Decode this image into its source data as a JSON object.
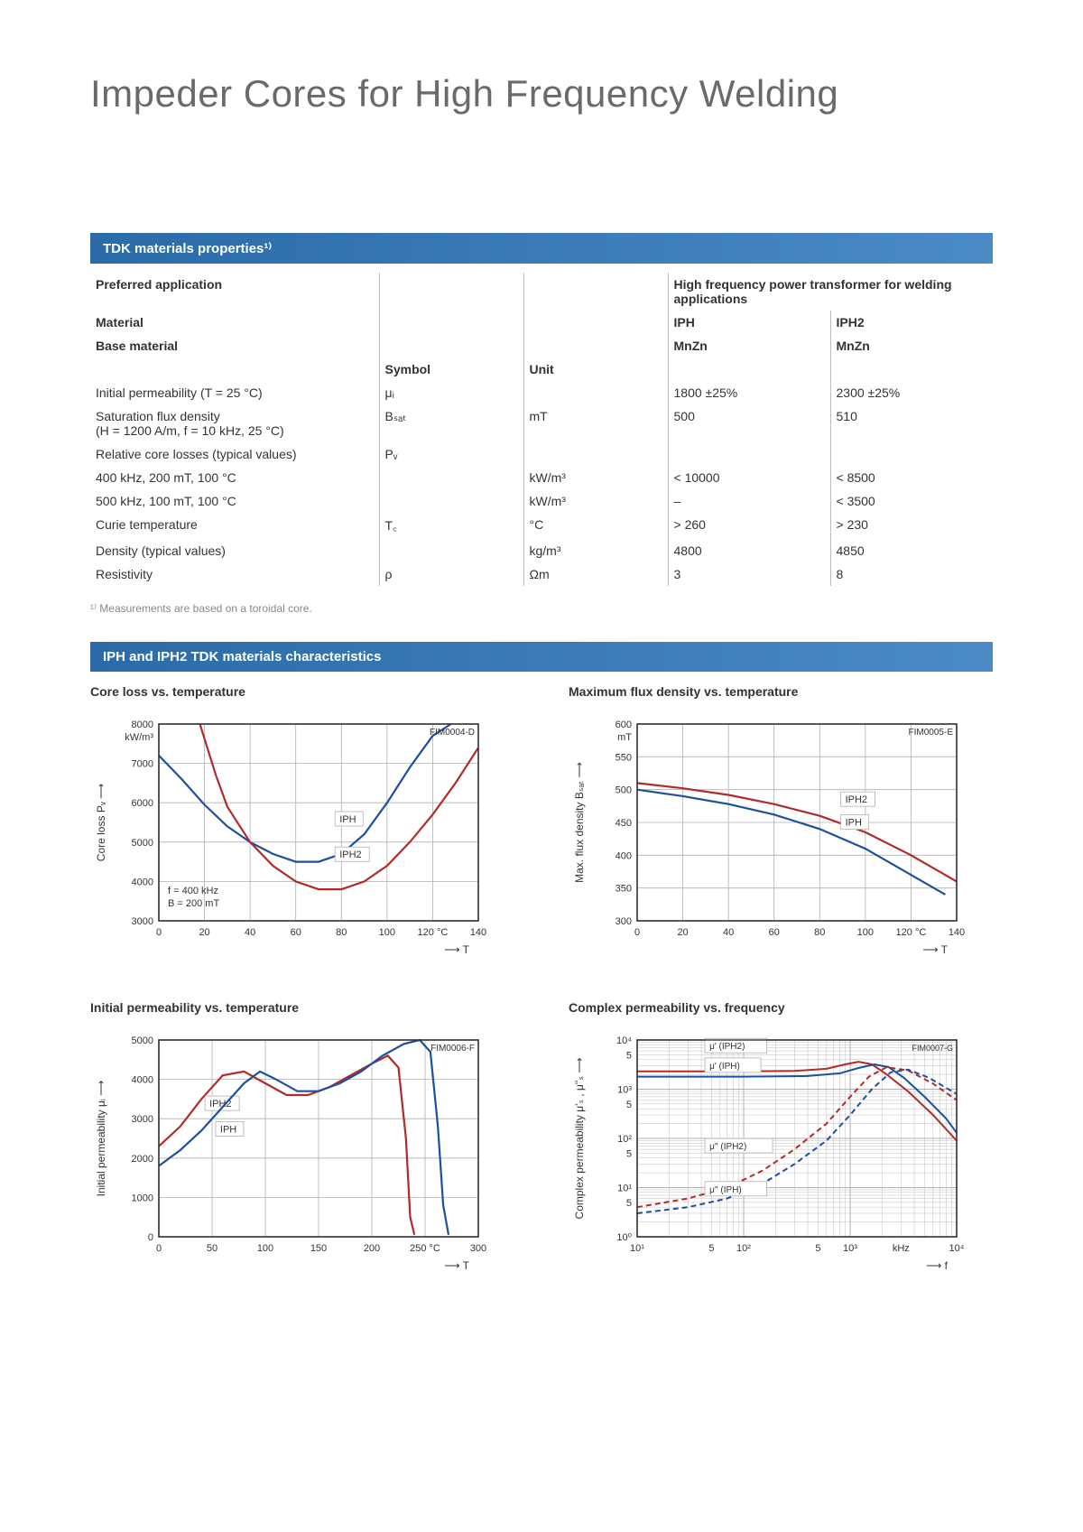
{
  "title": "Impeder Cores for High Frequency Welding",
  "section1_header": "TDK materials properties¹⁾",
  "section2_header": "IPH and IPH2 TDK materials characteristics",
  "footnote": "¹⁾ Measurements are based on a toroidal core.",
  "table": {
    "col_widths_pct": [
      32,
      16,
      16,
      18,
      18
    ],
    "rows": [
      {
        "c1": "Preferred application",
        "c1_bold": true,
        "c2": "",
        "c3": "",
        "c4": "High frequency power transformer for welding applications",
        "c4_span": 2,
        "c4_bold": true
      },
      {
        "c1": "Material",
        "c1_bold": true,
        "c2": "",
        "c3": "",
        "c4": "IPH",
        "c4_bold": true,
        "c5": "IPH2",
        "c5_bold": true
      },
      {
        "c1": "Base material",
        "c1_bold": true,
        "c2": "",
        "c3": "",
        "c4": "MnZn",
        "c4_bold": true,
        "c5": "MnZn",
        "c5_bold": true
      },
      {
        "c1": "",
        "c2": "Symbol",
        "c2_bold": true,
        "c3": "Unit",
        "c3_bold": true,
        "c4": "",
        "c5": ""
      },
      {
        "c1": "Initial permeability (T = 25 °C)",
        "c2": "μᵢ",
        "c3": "",
        "c4": "1800 ±25%",
        "c5": "2300 ±25%"
      },
      {
        "c1": "Saturation flux density\n(H = 1200 A/m, f = 10 kHz, 25 °C)",
        "c2": "Bₛₐₜ",
        "c3": "mT",
        "c4": "500",
        "c5": "510"
      },
      {
        "c1": "Relative core losses (typical values)",
        "c2": "Pᵥ",
        "c3": "",
        "c4": "",
        "c5": ""
      },
      {
        "c1": "400 kHz, 200 mT, 100 °C",
        "c2": "",
        "c3": "kW/m³",
        "c4": "< 10000",
        "c5": "< 8500"
      },
      {
        "c1": "500 kHz, 100 mT, 100 °C",
        "c2": "",
        "c3": "kW/m³",
        "c4": "–",
        "c5": "< 3500"
      },
      {
        "c1": "Curie temperature",
        "c2": "T꜀",
        "c3": "°C",
        "c4": "> 260",
        "c5": "> 230"
      },
      {
        "c1": "Density (typical values)",
        "c2": "",
        "c3": "kg/m³",
        "c4": "4800",
        "c5": "4850"
      },
      {
        "c1": "Resistivity",
        "c2": "ρ",
        "c3": "Ωm",
        "c4": "3",
        "c5": "8"
      }
    ]
  },
  "chart1": {
    "title": "Core loss vs. temperature",
    "code": "FIM0004-D",
    "ylabel": "Core loss Pᵥ ⟶",
    "yunit": "kW/m³",
    "xunit_suffix": "°C",
    "xlabel_arrow": "⟶ T",
    "xlim": [
      0,
      140
    ],
    "ylim": [
      3000,
      8000
    ],
    "xticks": [
      0,
      20,
      40,
      60,
      80,
      100,
      120,
      140
    ],
    "yticks": [
      3000,
      4000,
      5000,
      6000,
      7000,
      8000
    ],
    "grid_color": "#b0b0b0",
    "axis_color": "#333333",
    "bg": "#ffffff",
    "line_width": 2.2,
    "note_lines": [
      "f = 400 kHz",
      "B = 200 mT"
    ],
    "series": [
      {
        "name": "IPH",
        "color": "#1d4fa0",
        "label_pos": [
          78,
          5500
        ],
        "points": [
          [
            0,
            7200
          ],
          [
            10,
            6600
          ],
          [
            20,
            5950
          ],
          [
            30,
            5400
          ],
          [
            40,
            5000
          ],
          [
            50,
            4700
          ],
          [
            60,
            4500
          ],
          [
            70,
            4500
          ],
          [
            80,
            4700
          ],
          [
            90,
            5200
          ],
          [
            100,
            6000
          ],
          [
            110,
            6900
          ],
          [
            120,
            7700
          ],
          [
            128,
            8000
          ]
        ]
      },
      {
        "name": "IPH2",
        "color": "#b22a2a",
        "label_pos": [
          78,
          4600
        ],
        "points": [
          [
            18,
            8000
          ],
          [
            25,
            6700
          ],
          [
            30,
            5900
          ],
          [
            40,
            5000
          ],
          [
            50,
            4400
          ],
          [
            60,
            4000
          ],
          [
            70,
            3800
          ],
          [
            80,
            3800
          ],
          [
            90,
            4000
          ],
          [
            100,
            4400
          ],
          [
            110,
            5000
          ],
          [
            120,
            5700
          ],
          [
            130,
            6500
          ],
          [
            140,
            7400
          ]
        ]
      }
    ]
  },
  "chart2": {
    "title": "Maximum flux density vs. temperature",
    "code": "FIM0005-E",
    "ylabel": "Max. flux density Bₛₐₜ ⟶",
    "yunit": "mT",
    "xunit_suffix": "°C",
    "xlabel_arrow": "⟶ T",
    "xlim": [
      0,
      140
    ],
    "ylim": [
      300,
      600
    ],
    "xticks": [
      0,
      20,
      40,
      60,
      80,
      100,
      120,
      140
    ],
    "yticks": [
      300,
      350,
      400,
      450,
      500,
      550,
      600
    ],
    "grid_color": "#b0b0b0",
    "axis_color": "#333333",
    "bg": "#ffffff",
    "line_width": 2.2,
    "series": [
      {
        "name": "IPH2",
        "color": "#b22a2a",
        "label_pos": [
          90,
          480
        ],
        "points": [
          [
            0,
            510
          ],
          [
            20,
            502
          ],
          [
            40,
            492
          ],
          [
            60,
            478
          ],
          [
            80,
            460
          ],
          [
            100,
            435
          ],
          [
            120,
            400
          ],
          [
            140,
            360
          ]
        ]
      },
      {
        "name": "IPH",
        "color": "#1d4fa0",
        "label_pos": [
          90,
          445
        ],
        "points": [
          [
            0,
            500
          ],
          [
            20,
            490
          ],
          [
            40,
            478
          ],
          [
            60,
            462
          ],
          [
            80,
            440
          ],
          [
            100,
            410
          ],
          [
            120,
            370
          ],
          [
            135,
            340
          ]
        ]
      }
    ]
  },
  "chart3": {
    "title": "Initial permeability vs. temperature",
    "code": "FIM0006-F",
    "ylabel": "Initial permeability μᵢ ⟶",
    "yunit": "",
    "xunit_suffix": "°C",
    "xlabel_arrow": "⟶ T",
    "xlim": [
      0,
      300
    ],
    "ylim": [
      0,
      5000
    ],
    "xticks": [
      0,
      50,
      100,
      150,
      200,
      250,
      300
    ],
    "yticks": [
      0,
      1000,
      2000,
      3000,
      4000,
      5000
    ],
    "grid_color": "#b0b0b0",
    "axis_color": "#333333",
    "bg": "#ffffff",
    "line_width": 2.2,
    "series": [
      {
        "name": "IPH2",
        "color": "#b22a2a",
        "label_pos": [
          45,
          3300
        ],
        "points": [
          [
            0,
            2300
          ],
          [
            20,
            2800
          ],
          [
            40,
            3500
          ],
          [
            60,
            4100
          ],
          [
            80,
            4200
          ],
          [
            100,
            3900
          ],
          [
            120,
            3600
          ],
          [
            140,
            3600
          ],
          [
            160,
            3800
          ],
          [
            180,
            4100
          ],
          [
            200,
            4400
          ],
          [
            215,
            4600
          ],
          [
            225,
            4300
          ],
          [
            232,
            2500
          ],
          [
            236,
            500
          ],
          [
            240,
            50
          ]
        ]
      },
      {
        "name": "IPH",
        "color": "#1d4fa0",
        "label_pos": [
          55,
          2650
        ],
        "points": [
          [
            0,
            1800
          ],
          [
            20,
            2200
          ],
          [
            40,
            2700
          ],
          [
            60,
            3300
          ],
          [
            80,
            3900
          ],
          [
            95,
            4200
          ],
          [
            110,
            4000
          ],
          [
            130,
            3700
          ],
          [
            150,
            3700
          ],
          [
            170,
            3900
          ],
          [
            190,
            4200
          ],
          [
            210,
            4600
          ],
          [
            230,
            4900
          ],
          [
            245,
            5000
          ],
          [
            255,
            4700
          ],
          [
            262,
            2800
          ],
          [
            267,
            800
          ],
          [
            272,
            50
          ]
        ]
      }
    ]
  },
  "chart4": {
    "title": "Complex permeability vs. frequency",
    "code": "FIM0007-G",
    "ylabel": "Complex permeability μ'ₛ , μ''ₛ ⟶",
    "yunit": "",
    "xlabel_arrow": "⟶ f",
    "xlog": true,
    "ylog": true,
    "xlim": [
      10,
      10000
    ],
    "ylim": [
      1,
      10000
    ],
    "xticks_log": [
      10,
      50,
      100,
      500,
      1000,
      10000
    ],
    "xtick_labels": [
      "10¹",
      "5",
      "10²",
      "5",
      "10³",
      "10⁴"
    ],
    "xtick_minor_label": "kHz",
    "yticks_log": [
      1,
      5,
      10,
      50,
      100,
      500,
      1000,
      5000,
      10000
    ],
    "ytick_labels": [
      "10⁰",
      "5",
      "10¹",
      "5",
      "10²",
      "5",
      "10³",
      "5",
      "10⁴"
    ],
    "grid_color": "#b0b0b0",
    "axis_color": "#333333",
    "bg": "#ffffff",
    "line_width": 2.0,
    "series": [
      {
        "name": "μ' (IPH2)",
        "color": "#b22a2a",
        "dash": "",
        "label_pos": [
          45,
          6500
        ],
        "points": [
          [
            10,
            2300
          ],
          [
            50,
            2300
          ],
          [
            100,
            2300
          ],
          [
            300,
            2350
          ],
          [
            600,
            2600
          ],
          [
            900,
            3200
          ],
          [
            1200,
            3600
          ],
          [
            1600,
            3200
          ],
          [
            2200,
            2000
          ],
          [
            3500,
            900
          ],
          [
            6000,
            300
          ],
          [
            10000,
            90
          ]
        ]
      },
      {
        "name": "μ' (IPH)",
        "color": "#1d4fa0",
        "dash": "",
        "label_pos": [
          45,
          2600
        ],
        "points": [
          [
            10,
            1800
          ],
          [
            50,
            1800
          ],
          [
            100,
            1800
          ],
          [
            400,
            1850
          ],
          [
            800,
            2100
          ],
          [
            1200,
            2700
          ],
          [
            1700,
            3200
          ],
          [
            2300,
            2800
          ],
          [
            3200,
            1700
          ],
          [
            5000,
            700
          ],
          [
            8000,
            250
          ],
          [
            10000,
            130
          ]
        ]
      },
      {
        "name": "μ'' (IPH2)",
        "color": "#b22a2a",
        "dash": "6 4",
        "label_pos": [
          45,
          60
        ],
        "points": [
          [
            10,
            4
          ],
          [
            30,
            6
          ],
          [
            70,
            10
          ],
          [
            150,
            22
          ],
          [
            300,
            60
          ],
          [
            600,
            200
          ],
          [
            1000,
            700
          ],
          [
            1500,
            1800
          ],
          [
            2200,
            2800
          ],
          [
            3500,
            2400
          ],
          [
            6000,
            1300
          ],
          [
            10000,
            600
          ]
        ]
      },
      {
        "name": "μ'' (IPH)",
        "color": "#1d4fa0",
        "dash": "6 4",
        "label_pos": [
          45,
          8
        ],
        "points": [
          [
            10,
            3
          ],
          [
            30,
            4
          ],
          [
            70,
            6
          ],
          [
            150,
            12
          ],
          [
            300,
            30
          ],
          [
            600,
            90
          ],
          [
            1000,
            300
          ],
          [
            1600,
            1000
          ],
          [
            2400,
            2200
          ],
          [
            3500,
            2500
          ],
          [
            5500,
            1700
          ],
          [
            10000,
            800
          ]
        ]
      }
    ]
  }
}
